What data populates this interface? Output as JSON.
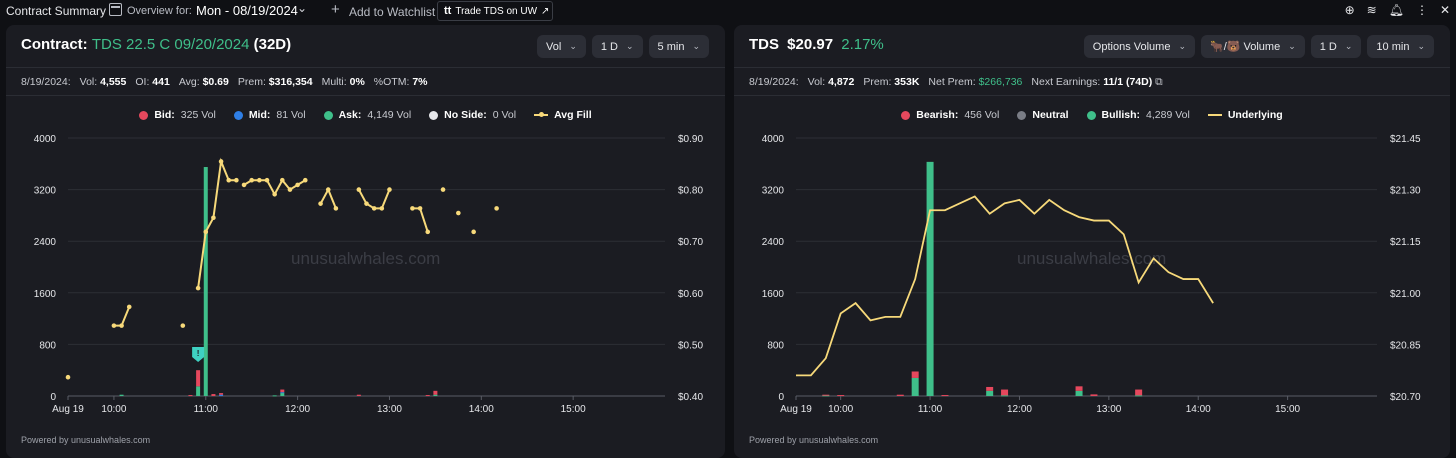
{
  "topbar": {
    "title": "Contract Summary",
    "overview_label": "Overview for:",
    "date": "Mon - 08/19/2024",
    "watchlist_label": "Add to Watchlist",
    "trade_logo": "tt",
    "trade_label": "Trade TDS on UW",
    "trade_arrow": "↗",
    "icons": [
      "plus-circle-icon",
      "menu-lines-icon",
      "bell-icon",
      "more-vertical-icon",
      "close-icon"
    ]
  },
  "watermark": "unusualwhales.com",
  "powered": "Powered by unusualwhales.com",
  "contract": {
    "title_prefix": "Contract:",
    "contract_name": "TDS 22.5 C 09/20/2024",
    "dte": "(32D)",
    "controls": [
      "Vol",
      "1 D",
      "5 min"
    ],
    "stats": [
      {
        "label": "8/19/2024:",
        "value": ""
      },
      {
        "label": "Vol:",
        "value": "4,555"
      },
      {
        "label": "OI:",
        "value": "441"
      },
      {
        "label": "Avg:",
        "value": "$0.69"
      },
      {
        "label": "Prem:",
        "value": "$316,354"
      },
      {
        "label": "Multi:",
        "value": "0%"
      },
      {
        "label": "%OTM:",
        "value": "7%"
      }
    ],
    "legend": [
      {
        "label": "Bid:",
        "value": "325 Vol",
        "color": "#e5485d"
      },
      {
        "label": "Mid:",
        "value": "81 Vol",
        "color": "#2f7fe6"
      },
      {
        "label": "Ask:",
        "value": "4,149 Vol",
        "color": "#3fbf8a"
      },
      {
        "label": "No Side:",
        "value": "0 Vol",
        "color": "#e6e7ea"
      },
      {
        "label": "Avg Fill",
        "value": "",
        "color": "#f7d97a"
      }
    ],
    "marker": "!"
  },
  "underlying": {
    "ticker": "TDS",
    "price": "$20.97",
    "change": "2.17%",
    "controls": [
      "Options Volume",
      "🐂/🐻 Volume",
      "1 D",
      "10 min"
    ],
    "stats": [
      {
        "label": "8/19/2024:",
        "value": ""
      },
      {
        "label": "Vol:",
        "value": "4,872"
      },
      {
        "label": "Prem:",
        "value": "353K"
      },
      {
        "label": "Net Prem:",
        "value": "$266,736"
      },
      {
        "label": "Next Earnings:",
        "value": "11/1 (74D)"
      }
    ],
    "legend": [
      {
        "label": "Bearish:",
        "value": "456 Vol",
        "color": "#e5485d"
      },
      {
        "label": "Neutral",
        "value": "",
        "color": "#7a7d86"
      },
      {
        "label": "Bullish:",
        "value": "4,289 Vol",
        "color": "#3fbf8a"
      },
      {
        "label": "Underlying",
        "value": "",
        "color": "#f7d97a"
      }
    ]
  },
  "chart_data": [
    {
      "type": "bar",
      "title": "",
      "x_ticks": [
        "Aug 19",
        "10:00",
        "11:00",
        "12:00",
        "13:00",
        "14:00",
        "15:00"
      ],
      "y_left_ticks": [
        "0",
        "800",
        "1600",
        "2400",
        "3200",
        "4000"
      ],
      "y_right_ticks": [
        "$0.40",
        "$0.50",
        "$0.60",
        "$0.70",
        "$0.80",
        "$0.90"
      ],
      "ylim": [
        0,
        4000
      ],
      "y2lim": [
        0.35,
        0.9
      ],
      "bars": [
        {
          "t": "10:05",
          "ask": 20,
          "bid": 0
        },
        {
          "t": "10:50",
          "ask": 0,
          "bid": 15
        },
        {
          "t": "10:55",
          "ask": 150,
          "bid": 250
        },
        {
          "t": "11:00",
          "ask": 3550,
          "bid": 0
        },
        {
          "t": "11:05",
          "ask": 0,
          "bid": 30
        },
        {
          "t": "11:10",
          "ask": 0,
          "bid": 25,
          "mid": 20
        },
        {
          "t": "11:45",
          "ask": 10,
          "bid": 0
        },
        {
          "t": "11:50",
          "ask": 50,
          "bid": 40,
          "mid": 10
        },
        {
          "t": "12:40",
          "ask": 0,
          "bid": 20
        },
        {
          "t": "13:25",
          "ask": 0,
          "bid": 15
        },
        {
          "t": "13:30",
          "ask": 20,
          "bid": 60
        }
      ],
      "avg_fill_segments": [
        [
          [
            "09:30",
            0.39
          ]
        ],
        [
          [
            "10:00",
            0.5
          ],
          [
            "10:05",
            0.5
          ],
          [
            "10:10",
            0.54
          ]
        ],
        [
          [
            "10:45",
            0.5
          ]
        ],
        [
          [
            "10:55",
            0.58
          ],
          [
            "11:00",
            0.7
          ],
          [
            "11:05",
            0.73
          ],
          [
            "11:10",
            0.85
          ],
          [
            "11:15",
            0.81
          ],
          [
            "11:20",
            0.81
          ]
        ],
        [
          [
            "11:25",
            0.8
          ],
          [
            "11:30",
            0.81
          ],
          [
            "11:35",
            0.81
          ],
          [
            "11:40",
            0.81
          ],
          [
            "11:45",
            0.78
          ],
          [
            "11:50",
            0.81
          ],
          [
            "11:55",
            0.79
          ],
          [
            "12:00",
            0.8
          ],
          [
            "12:05",
            0.81
          ]
        ],
        [
          [
            "12:15",
            0.76
          ],
          [
            "12:20",
            0.79
          ],
          [
            "12:25",
            0.75
          ]
        ],
        [
          [
            "12:40",
            0.79
          ],
          [
            "12:45",
            0.76
          ],
          [
            "12:50",
            0.75
          ],
          [
            "12:55",
            0.75
          ],
          [
            "13:00",
            0.79
          ]
        ],
        [
          [
            "13:15",
            0.75
          ],
          [
            "13:20",
            0.75
          ],
          [
            "13:25",
            0.7
          ]
        ],
        [
          [
            "13:35",
            0.79
          ]
        ],
        [
          [
            "13:45",
            0.74
          ]
        ],
        [
          [
            "13:55",
            0.7
          ]
        ],
        [
          [
            "14:10",
            0.75
          ]
        ]
      ]
    },
    {
      "type": "bar",
      "title": "",
      "x_ticks": [
        "Aug 19",
        "10:00",
        "11:00",
        "12:00",
        "13:00",
        "14:00",
        "15:00"
      ],
      "y_left_ticks": [
        "0",
        "800",
        "1600",
        "2400",
        "3200",
        "4000"
      ],
      "y_right_ticks": [
        "$20.70",
        "$20.85",
        "$21.00",
        "$21.15",
        "$21.30",
        "$21.45"
      ],
      "ylim": [
        0,
        4000
      ],
      "y2lim": [
        20.7,
        21.45
      ],
      "bars": [
        {
          "t": "09:50",
          "bullish": 10,
          "bearish": 10
        },
        {
          "t": "10:00",
          "bullish": 0,
          "bearish": 15
        },
        {
          "t": "10:40",
          "bullish": 0,
          "bearish": 20
        },
        {
          "t": "10:50",
          "bullish": 280,
          "bearish": 100
        },
        {
          "t": "11:00",
          "bullish": 3630,
          "bearish": 0
        },
        {
          "t": "11:10",
          "bullish": 0,
          "bearish": 15
        },
        {
          "t": "11:40",
          "bullish": 80,
          "bearish": 60
        },
        {
          "t": "11:50",
          "bullish": 10,
          "bearish": 90
        },
        {
          "t": "12:40",
          "bullish": 80,
          "bearish": 70
        },
        {
          "t": "12:50",
          "bullish": 0,
          "bearish": 25
        },
        {
          "t": "13:20",
          "bullish": 10,
          "bearish": 90
        }
      ],
      "underlying_line": [
        [
          "09:30",
          20.76
        ],
        [
          "09:40",
          20.76
        ],
        [
          "09:50",
          20.81
        ],
        [
          "10:00",
          20.94
        ],
        [
          "10:10",
          20.97
        ],
        [
          "10:20",
          20.92
        ],
        [
          "10:30",
          20.93
        ],
        [
          "10:40",
          20.93
        ],
        [
          "10:50",
          21.04
        ],
        [
          "11:00",
          21.24
        ],
        [
          "11:10",
          21.24
        ],
        [
          "11:20",
          21.26
        ],
        [
          "11:30",
          21.28
        ],
        [
          "11:40",
          21.23
        ],
        [
          "11:50",
          21.26
        ],
        [
          "12:00",
          21.27
        ],
        [
          "12:10",
          21.23
        ],
        [
          "12:20",
          21.27
        ],
        [
          "12:30",
          21.24
        ],
        [
          "12:40",
          21.22
        ],
        [
          "12:50",
          21.21
        ],
        [
          "13:00",
          21.21
        ],
        [
          "13:10",
          21.17
        ],
        [
          "13:20",
          21.03
        ],
        [
          "13:30",
          21.1
        ],
        [
          "13:40",
          21.06
        ],
        [
          "13:50",
          21.04
        ],
        [
          "14:00",
          21.04
        ],
        [
          "14:10",
          20.97
        ]
      ]
    }
  ]
}
